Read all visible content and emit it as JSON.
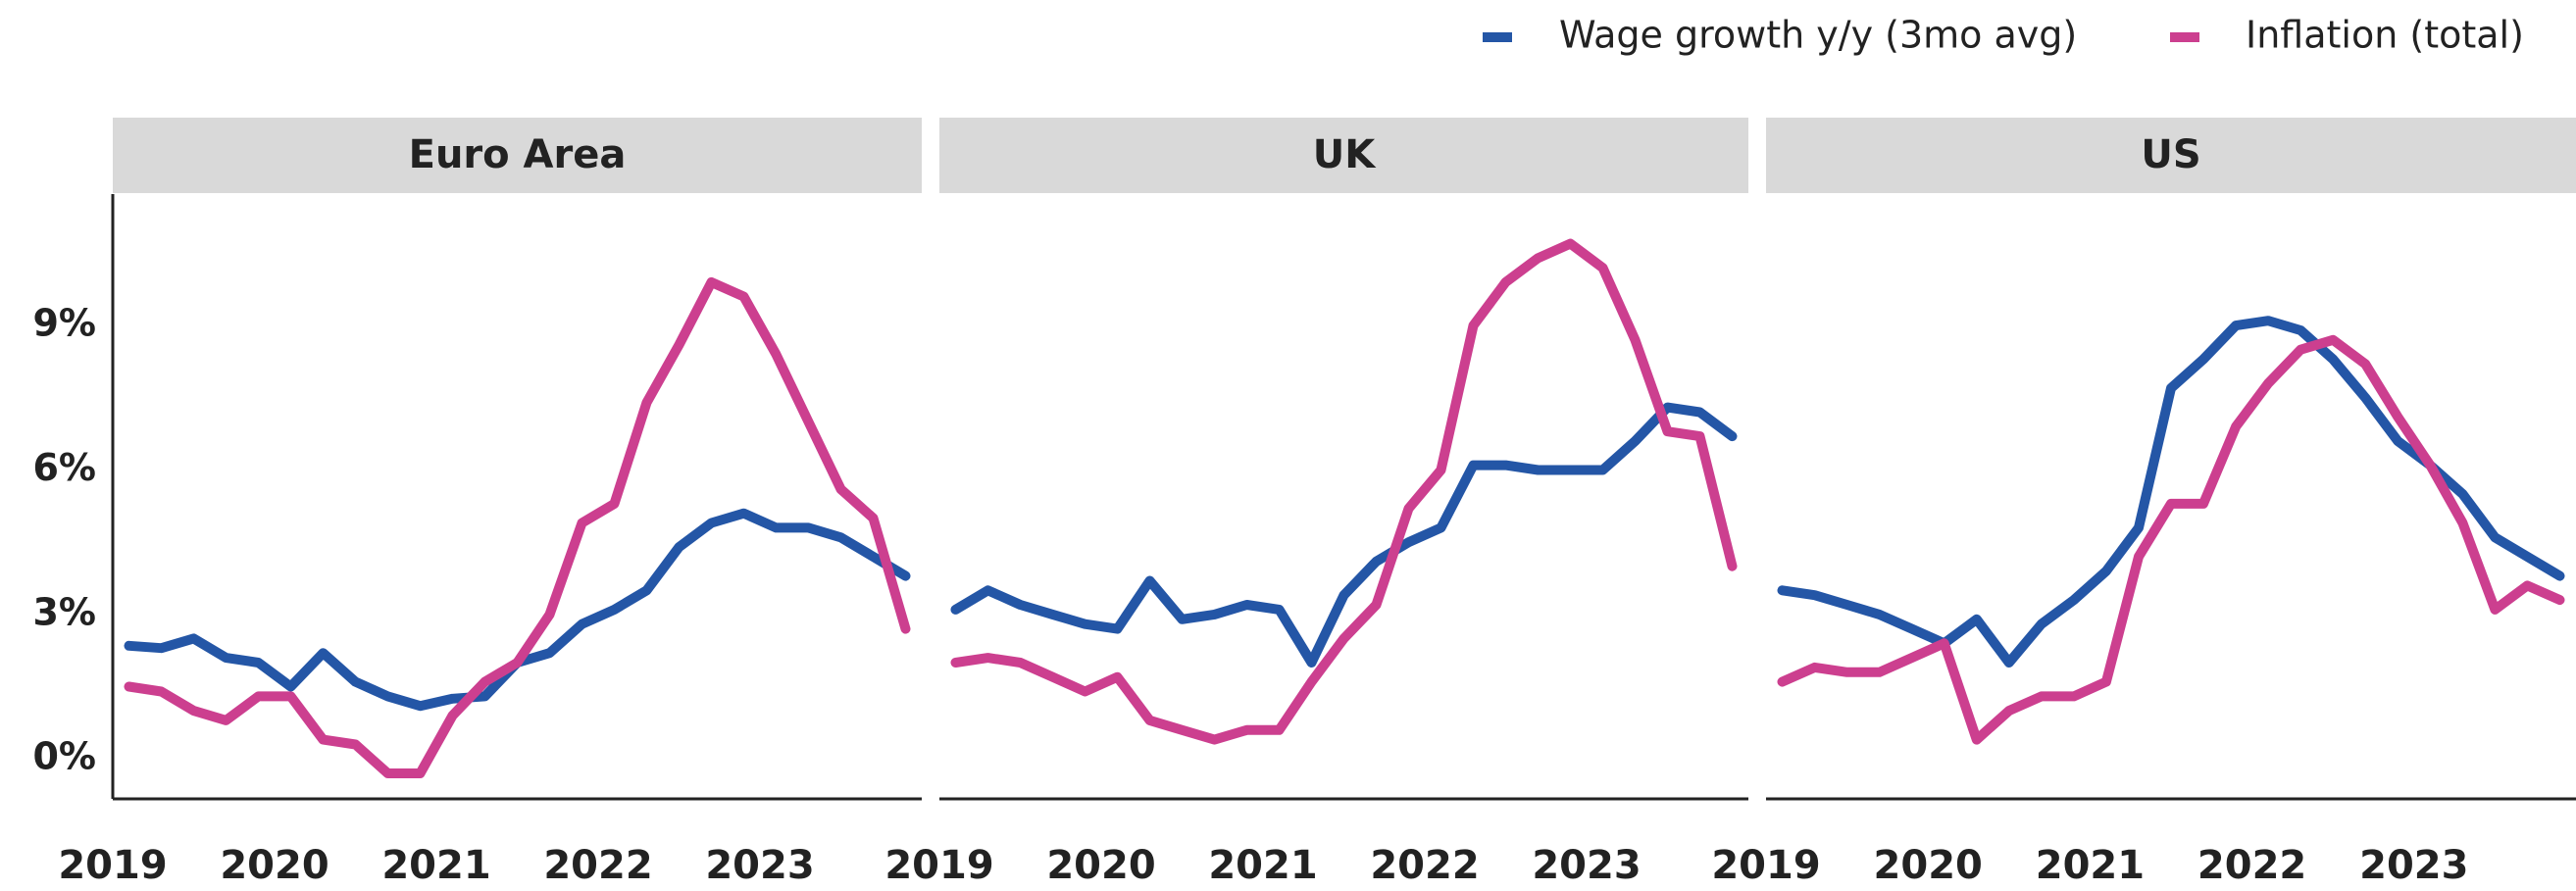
{
  "chart_data": {
    "type": "line",
    "series": [
      {
        "name": "Wage growth y/y (3mo avg)",
        "color": "#2456a6"
      },
      {
        "name": "Inflation (total)",
        "color": "#cc3f8f"
      }
    ],
    "x": [
      2019.1,
      2019.3,
      2019.5,
      2019.7,
      2019.9,
      2020.1,
      2020.3,
      2020.5,
      2020.7,
      2020.9,
      2021.1,
      2021.3,
      2021.5,
      2021.7,
      2021.9,
      2022.1,
      2022.3,
      2022.5,
      2022.7,
      2022.9,
      2023.1,
      2023.3,
      2023.5,
      2023.7,
      2023.9
    ],
    "xlim": [
      2019,
      2024
    ],
    "xticks": [
      2019,
      2020,
      2021,
      2022,
      2023
    ],
    "ylim": [
      -0.83,
      11.73
    ],
    "yticks": [
      {
        "value": 0,
        "label": "0%"
      },
      {
        "value": 3,
        "label": "3%"
      },
      {
        "value": 6,
        "label": "6%"
      },
      {
        "value": 9,
        "label": "9%"
      }
    ],
    "grid": false,
    "panels": [
      {
        "title": "Euro Area",
        "series": [
          {
            "values": [
              2.35,
              2.3,
              2.5,
              2.1,
              2.0,
              1.5,
              2.2,
              1.6,
              1.3,
              1.1,
              1.25,
              1.3,
              2.0,
              2.2,
              2.8,
              3.1,
              3.5,
              4.4,
              4.9,
              5.1,
              4.8,
              4.8,
              4.6,
              4.2,
              3.8
            ]
          },
          {
            "values": [
              1.5,
              1.4,
              1.0,
              0.8,
              1.3,
              1.3,
              0.4,
              0.3,
              -0.3,
              -0.3,
              0.9,
              1.6,
              2.0,
              3.0,
              4.9,
              5.3,
              7.4,
              8.6,
              9.9,
              9.6,
              8.4,
              7.0,
              5.6,
              5.0,
              2.7
            ]
          }
        ]
      },
      {
        "title": "UK",
        "series": [
          {
            "values": [
              3.1,
              3.5,
              3.2,
              3.0,
              2.8,
              2.7,
              3.7,
              2.9,
              3.0,
              3.2,
              3.1,
              2.0,
              3.4,
              4.1,
              4.5,
              4.8,
              6.1,
              6.1,
              6.0,
              6.0,
              6.0,
              6.6,
              7.3,
              7.2,
              6.7
            ]
          },
          {
            "values": [
              2.0,
              2.1,
              2.0,
              1.7,
              1.4,
              1.7,
              0.8,
              0.6,
              0.4,
              0.6,
              0.6,
              1.6,
              2.5,
              3.2,
              5.2,
              6.0,
              9.0,
              9.9,
              10.4,
              10.7,
              10.2,
              8.7,
              6.8,
              6.7,
              4.0
            ]
          }
        ]
      },
      {
        "title": "US",
        "series": [
          {
            "values": [
              3.5,
              3.4,
              3.2,
              3.0,
              2.7,
              2.4,
              2.9,
              2.0,
              2.8,
              3.3,
              3.9,
              4.8,
              7.7,
              8.3,
              9.0,
              9.1,
              8.9,
              8.3,
              7.5,
              6.6,
              6.1,
              5.5,
              4.6,
              4.2,
              3.8
            ]
          },
          {
            "values": [
              1.6,
              1.9,
              1.8,
              1.8,
              2.1,
              2.4,
              0.4,
              1.0,
              1.3,
              1.3,
              1.6,
              4.2,
              5.3,
              5.3,
              6.9,
              7.8,
              8.5,
              8.7,
              8.2,
              7.1,
              6.1,
              4.9,
              3.1,
              3.6,
              3.3
            ]
          }
        ]
      }
    ]
  }
}
